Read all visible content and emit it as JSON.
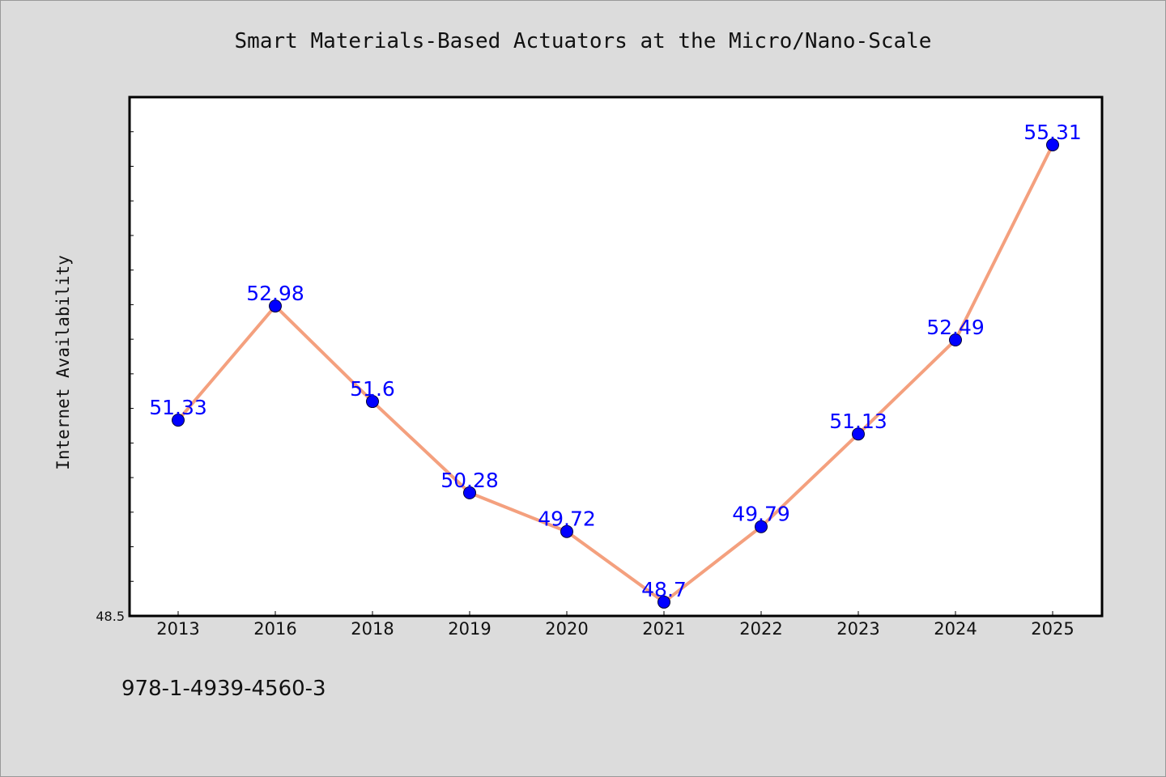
{
  "chart_data": {
    "type": "line",
    "title": "Smart Materials-Based Actuators at the Micro/Nano-Scale",
    "xlabel": "",
    "ylabel": "Internet Availability",
    "categories": [
      "2013",
      "2016",
      "2018",
      "2019",
      "2020",
      "2021",
      "2022",
      "2023",
      "2024",
      "2025"
    ],
    "values": [
      51.33,
      52.98,
      51.6,
      50.28,
      49.72,
      48.7,
      49.79,
      51.13,
      52.49,
      55.31
    ],
    "data_labels": [
      "51.33",
      "52.98",
      "51.6",
      "50.28",
      "49.72",
      "48.7",
      "49.79",
      "51.13",
      "52.49",
      "55.31"
    ],
    "ylim": [
      48.5,
      56.0
    ],
    "yticks_labeled": [
      "48.5"
    ],
    "ytick_step": 0.5,
    "grid": false,
    "legend": "none",
    "colors": {
      "line": "#f4a07e",
      "marker": "#0000ff",
      "data_label": "#0000ff",
      "plot_background": "#ffffff",
      "figure_background": "#dcdcdc"
    }
  },
  "footer": {
    "isbn": "978-1-4939-4560-3"
  }
}
